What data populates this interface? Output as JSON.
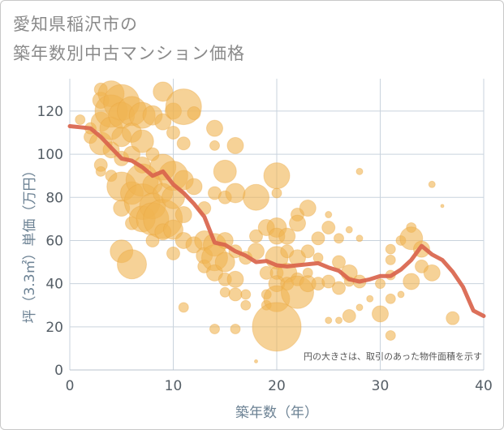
{
  "title_line1": "愛知県稲沢市の",
  "title_line2": "築年数別中古マンション価格",
  "chart_data": {
    "type": "scatter",
    "xlabel": "築年数（年）",
    "ylabel": "坪（3.3㎡）単価（万円）",
    "xlim": [
      0,
      40
    ],
    "ylim": [
      0,
      135
    ],
    "x_ticks": [
      0,
      10,
      20,
      30,
      40
    ],
    "y_ticks": [
      0,
      20,
      40,
      60,
      80,
      100,
      120
    ],
    "annotation": "円の大きさは、取引のあった物件面積を示す",
    "colors": {
      "bubble": "#f0b452",
      "line": "#d9644c",
      "grid": "#c9d3dd"
    },
    "points": [
      {
        "x": 1,
        "y": 116,
        "s": 6
      },
      {
        "x": 2,
        "y": 108,
        "s": 8
      },
      {
        "x": 2,
        "y": 112,
        "s": 7
      },
      {
        "x": 3,
        "y": 130,
        "s": 8
      },
      {
        "x": 3,
        "y": 125,
        "s": 10
      },
      {
        "x": 3,
        "y": 115,
        "s": 12
      },
      {
        "x": 3,
        "y": 105,
        "s": 14
      },
      {
        "x": 3,
        "y": 95,
        "s": 8
      },
      {
        "x": 3,
        "y": 92,
        "s": 6
      },
      {
        "x": 4,
        "y": 128,
        "s": 16
      },
      {
        "x": 4,
        "y": 120,
        "s": 20
      },
      {
        "x": 4,
        "y": 112,
        "s": 14
      },
      {
        "x": 4,
        "y": 102,
        "s": 10
      },
      {
        "x": 4,
        "y": 90,
        "s": 7
      },
      {
        "x": 5,
        "y": 124,
        "s": 22
      },
      {
        "x": 5,
        "y": 118,
        "s": 16
      },
      {
        "x": 5,
        "y": 108,
        "s": 12
      },
      {
        "x": 5,
        "y": 98,
        "s": 9
      },
      {
        "x": 5,
        "y": 85,
        "s": 18
      },
      {
        "x": 5,
        "y": 75,
        "s": 10
      },
      {
        "x": 5,
        "y": 55,
        "s": 14
      },
      {
        "x": 6,
        "y": 120,
        "s": 18
      },
      {
        "x": 6,
        "y": 110,
        "s": 12
      },
      {
        "x": 6,
        "y": 100,
        "s": 10
      },
      {
        "x": 6,
        "y": 82,
        "s": 14
      },
      {
        "x": 6,
        "y": 68,
        "s": 8
      },
      {
        "x": 6,
        "y": 49,
        "s": 18
      },
      {
        "x": 7,
        "y": 118,
        "s": 16
      },
      {
        "x": 7,
        "y": 106,
        "s": 14
      },
      {
        "x": 7,
        "y": 95,
        "s": 10
      },
      {
        "x": 7,
        "y": 88,
        "s": 20
      },
      {
        "x": 7,
        "y": 78,
        "s": 22
      },
      {
        "x": 7,
        "y": 70,
        "s": 16
      },
      {
        "x": 8,
        "y": 118,
        "s": 12
      },
      {
        "x": 8,
        "y": 100,
        "s": 8
      },
      {
        "x": 8,
        "y": 86,
        "s": 12
      },
      {
        "x": 8,
        "y": 76,
        "s": 16
      },
      {
        "x": 8,
        "y": 70,
        "s": 20
      },
      {
        "x": 8,
        "y": 60,
        "s": 8
      },
      {
        "x": 9,
        "y": 129,
        "s": 12
      },
      {
        "x": 9,
        "y": 115,
        "s": 10
      },
      {
        "x": 9,
        "y": 94,
        "s": 16
      },
      {
        "x": 9,
        "y": 82,
        "s": 12
      },
      {
        "x": 9,
        "y": 70,
        "s": 24
      },
      {
        "x": 9,
        "y": 64,
        "s": 10
      },
      {
        "x": 10,
        "y": 120,
        "s": 10
      },
      {
        "x": 10,
        "y": 110,
        "s": 8
      },
      {
        "x": 10,
        "y": 90,
        "s": 18
      },
      {
        "x": 10,
        "y": 80,
        "s": 14
      },
      {
        "x": 10,
        "y": 65,
        "s": 12
      },
      {
        "x": 10,
        "y": 54,
        "s": 8
      },
      {
        "x": 11,
        "y": 122,
        "s": 22
      },
      {
        "x": 11,
        "y": 105,
        "s": 8
      },
      {
        "x": 11,
        "y": 88,
        "s": 12
      },
      {
        "x": 11,
        "y": 72,
        "s": 10
      },
      {
        "x": 11,
        "y": 60,
        "s": 10
      },
      {
        "x": 11,
        "y": 29,
        "s": 6
      },
      {
        "x": 12,
        "y": 119,
        "s": 8
      },
      {
        "x": 12,
        "y": 85,
        "s": 10
      },
      {
        "x": 12,
        "y": 58,
        "s": 10
      },
      {
        "x": 13,
        "y": 75,
        "s": 8
      },
      {
        "x": 13,
        "y": 60,
        "s": 12
      },
      {
        "x": 13,
        "y": 53,
        "s": 10
      },
      {
        "x": 13,
        "y": 48,
        "s": 8
      },
      {
        "x": 14,
        "y": 112,
        "s": 10
      },
      {
        "x": 14,
        "y": 104,
        "s": 6
      },
      {
        "x": 14,
        "y": 82,
        "s": 8
      },
      {
        "x": 14,
        "y": 58,
        "s": 14
      },
      {
        "x": 14,
        "y": 52,
        "s": 16
      },
      {
        "x": 14,
        "y": 45,
        "s": 10
      },
      {
        "x": 14,
        "y": 19,
        "s": 6
      },
      {
        "x": 15,
        "y": 92,
        "s": 14
      },
      {
        "x": 15,
        "y": 80,
        "s": 8
      },
      {
        "x": 15,
        "y": 60,
        "s": 10
      },
      {
        "x": 15,
        "y": 50,
        "s": 12
      },
      {
        "x": 15,
        "y": 42,
        "s": 8
      },
      {
        "x": 15,
        "y": 36,
        "s": 6
      },
      {
        "x": 16,
        "y": 104,
        "s": 10
      },
      {
        "x": 16,
        "y": 82,
        "s": 12
      },
      {
        "x": 16,
        "y": 55,
        "s": 8
      },
      {
        "x": 16,
        "y": 42,
        "s": 10
      },
      {
        "x": 16,
        "y": 35,
        "s": 8
      },
      {
        "x": 16,
        "y": 19,
        "s": 6
      },
      {
        "x": 17,
        "y": 52,
        "s": 8
      },
      {
        "x": 17,
        "y": 35,
        "s": 6
      },
      {
        "x": 17,
        "y": 30,
        "s": 6
      },
      {
        "x": 18,
        "y": 80,
        "s": 16
      },
      {
        "x": 18,
        "y": 62,
        "s": 8
      },
      {
        "x": 18,
        "y": 55,
        "s": 10
      },
      {
        "x": 18,
        "y": 4,
        "s": 2
      },
      {
        "x": 19,
        "y": 66,
        "s": 10
      },
      {
        "x": 19,
        "y": 45,
        "s": 8
      },
      {
        "x": 19,
        "y": 35,
        "s": 6
      },
      {
        "x": 19,
        "y": 30,
        "s": 6
      },
      {
        "x": 20,
        "y": 90,
        "s": 16
      },
      {
        "x": 20,
        "y": 82,
        "s": 6
      },
      {
        "x": 20,
        "y": 66,
        "s": 12
      },
      {
        "x": 20,
        "y": 62,
        "s": 10
      },
      {
        "x": 20,
        "y": 52,
        "s": 14
      },
      {
        "x": 20,
        "y": 45,
        "s": 8
      },
      {
        "x": 20,
        "y": 40,
        "s": 10
      },
      {
        "x": 20,
        "y": 33,
        "s": 16
      },
      {
        "x": 20,
        "y": 20,
        "s": 30
      },
      {
        "x": 21,
        "y": 62,
        "s": 10
      },
      {
        "x": 21,
        "y": 55,
        "s": 8
      },
      {
        "x": 21,
        "y": 45,
        "s": 12
      },
      {
        "x": 21,
        "y": 40,
        "s": 8
      },
      {
        "x": 22,
        "y": 72,
        "s": 8
      },
      {
        "x": 22,
        "y": 68,
        "s": 10
      },
      {
        "x": 22,
        "y": 52,
        "s": 10
      },
      {
        "x": 22,
        "y": 42,
        "s": 8
      },
      {
        "x": 22,
        "y": 36,
        "s": 20
      },
      {
        "x": 23,
        "y": 75,
        "s": 10
      },
      {
        "x": 23,
        "y": 55,
        "s": 8
      },
      {
        "x": 23,
        "y": 45,
        "s": 6
      },
      {
        "x": 23,
        "y": 40,
        "s": 10
      },
      {
        "x": 24,
        "y": 61,
        "s": 8
      },
      {
        "x": 24,
        "y": 52,
        "s": 6
      },
      {
        "x": 24,
        "y": 40,
        "s": 8
      },
      {
        "x": 25,
        "y": 72,
        "s": 4
      },
      {
        "x": 25,
        "y": 66,
        "s": 8
      },
      {
        "x": 25,
        "y": 41,
        "s": 8
      },
      {
        "x": 25,
        "y": 23,
        "s": 4
      },
      {
        "x": 26,
        "y": 61,
        "s": 6
      },
      {
        "x": 26,
        "y": 50,
        "s": 8
      },
      {
        "x": 26,
        "y": 38,
        "s": 8
      },
      {
        "x": 26,
        "y": 23,
        "s": 4
      },
      {
        "x": 27,
        "y": 65,
        "s": 4
      },
      {
        "x": 27,
        "y": 45,
        "s": 10
      },
      {
        "x": 27,
        "y": 25,
        "s": 8
      },
      {
        "x": 27,
        "y": 41,
        "s": 6
      },
      {
        "x": 28,
        "y": 92,
        "s": 4
      },
      {
        "x": 28,
        "y": 61,
        "s": 4
      },
      {
        "x": 28,
        "y": 41,
        "s": 8
      },
      {
        "x": 28,
        "y": 29,
        "s": 4
      },
      {
        "x": 29,
        "y": 33,
        "s": 4
      },
      {
        "x": 30,
        "y": 26,
        "s": 10
      },
      {
        "x": 30,
        "y": 40,
        "s": 6
      },
      {
        "x": 31,
        "y": 56,
        "s": 6
      },
      {
        "x": 31,
        "y": 51,
        "s": 6
      },
      {
        "x": 31,
        "y": 44,
        "s": 6
      },
      {
        "x": 31,
        "y": 33,
        "s": 6
      },
      {
        "x": 31,
        "y": 16,
        "s": 6
      },
      {
        "x": 32,
        "y": 60,
        "s": 6
      },
      {
        "x": 32,
        "y": 35,
        "s": 4
      },
      {
        "x": 33,
        "y": 66,
        "s": 6
      },
      {
        "x": 33,
        "y": 61,
        "s": 14
      },
      {
        "x": 33,
        "y": 41,
        "s": 10
      },
      {
        "x": 34,
        "y": 56,
        "s": 10
      },
      {
        "x": 34,
        "y": 48,
        "s": 8
      },
      {
        "x": 35,
        "y": 86,
        "s": 4
      },
      {
        "x": 35,
        "y": 45,
        "s": 10
      },
      {
        "x": 36,
        "y": 76,
        "s": 2
      },
      {
        "x": 37,
        "y": 24,
        "s": 8
      }
    ],
    "trend_line": [
      {
        "x": 0,
        "y": 113
      },
      {
        "x": 1,
        "y": 112.5
      },
      {
        "x": 2,
        "y": 112
      },
      {
        "x": 3,
        "y": 108
      },
      {
        "x": 4,
        "y": 103
      },
      {
        "x": 5,
        "y": 98
      },
      {
        "x": 6,
        "y": 97
      },
      {
        "x": 7,
        "y": 94
      },
      {
        "x": 8,
        "y": 90
      },
      {
        "x": 9,
        "y": 92
      },
      {
        "x": 10,
        "y": 86
      },
      {
        "x": 11,
        "y": 82
      },
      {
        "x": 12,
        "y": 77
      },
      {
        "x": 13,
        "y": 71
      },
      {
        "x": 14,
        "y": 59
      },
      {
        "x": 15,
        "y": 58
      },
      {
        "x": 16,
        "y": 55
      },
      {
        "x": 17,
        "y": 53
      },
      {
        "x": 18,
        "y": 50
      },
      {
        "x": 19,
        "y": 50.5
      },
      {
        "x": 20,
        "y": 48.5
      },
      {
        "x": 21,
        "y": 48
      },
      {
        "x": 22,
        "y": 48.5
      },
      {
        "x": 23,
        "y": 49
      },
      {
        "x": 24,
        "y": 49.5
      },
      {
        "x": 25,
        "y": 47.5
      },
      {
        "x": 26,
        "y": 46
      },
      {
        "x": 27,
        "y": 42
      },
      {
        "x": 28,
        "y": 41
      },
      {
        "x": 29,
        "y": 42
      },
      {
        "x": 30,
        "y": 43.5
      },
      {
        "x": 31,
        "y": 43.5
      },
      {
        "x": 32,
        "y": 46.5
      },
      {
        "x": 33,
        "y": 51
      },
      {
        "x": 34,
        "y": 57.5
      },
      {
        "x": 35,
        "y": 53.5
      },
      {
        "x": 36,
        "y": 51
      },
      {
        "x": 37,
        "y": 45.5
      },
      {
        "x": 38,
        "y": 38.5
      },
      {
        "x": 39,
        "y": 27.5
      },
      {
        "x": 40,
        "y": 25
      }
    ]
  }
}
